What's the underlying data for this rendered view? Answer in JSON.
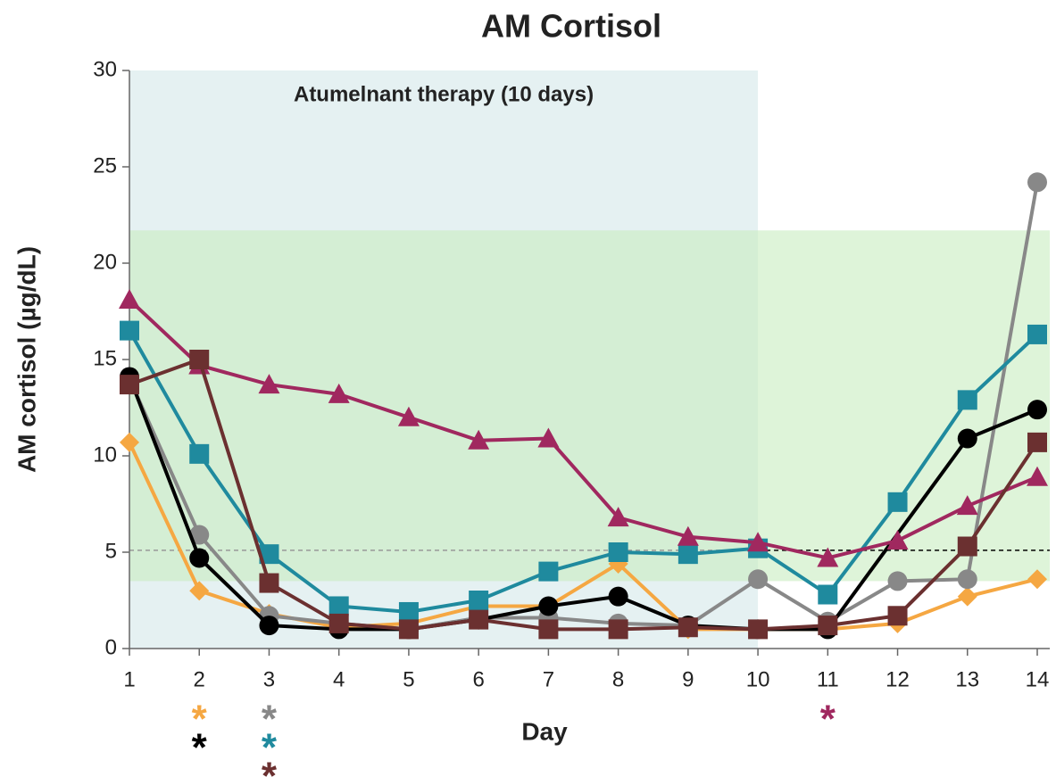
{
  "chart_data": {
    "type": "line",
    "title": "AM Cortisol",
    "xlabel": "Day",
    "ylabel": "AM cortisol (µg/dL)",
    "x": [
      1,
      2,
      3,
      4,
      5,
      6,
      7,
      8,
      9,
      10,
      11,
      12,
      13,
      14
    ],
    "xlim": [
      1,
      14
    ],
    "xticks": [
      1,
      2,
      3,
      4,
      5,
      6,
      7,
      8,
      9,
      10,
      11,
      12,
      13,
      14
    ],
    "ylim": [
      0,
      30
    ],
    "yticks": [
      0,
      5,
      10,
      15,
      20,
      25,
      30
    ],
    "grid": false,
    "shaded_regions": [
      {
        "xlim": [
          1,
          10
        ],
        "ylim": [
          0,
          30
        ],
        "color": "#d4e7ea",
        "label": "Atumelnant therapy (10 days)"
      },
      {
        "xlim": [
          1,
          14
        ],
        "ylim": [
          3.5,
          21.7
        ],
        "color": "#c8edc0"
      }
    ],
    "reference_lines": [
      {
        "y": 5.1,
        "xlim": [
          1,
          10
        ],
        "color": "#999999"
      },
      {
        "y": 5.1,
        "xlim": [
          10,
          14
        ],
        "color": "#000000"
      }
    ],
    "series": [
      {
        "color": "#f5a742",
        "marker": "diamond",
        "values": [
          10.7,
          3.0,
          1.8,
          1.1,
          1.3,
          2.2,
          2.2,
          4.4,
          1.0,
          1.0,
          1.0,
          1.3,
          2.7,
          3.6
        ]
      },
      {
        "color": "#888888",
        "marker": "circle",
        "values": [
          14.0,
          5.9,
          1.7,
          1.3,
          1.0,
          1.6,
          1.6,
          1.3,
          1.2,
          3.6,
          1.4,
          3.5,
          3.6,
          24.2
        ]
      },
      {
        "color": "#000000",
        "marker": "circle",
        "x": [
          1,
          2,
          3,
          4,
          5,
          6,
          7,
          8,
          9,
          10,
          11,
          13,
          14
        ],
        "values": [
          14.1,
          4.7,
          1.2,
          1.0,
          1.0,
          1.5,
          2.2,
          2.7,
          1.2,
          1.0,
          1.0,
          10.9,
          12.4
        ]
      },
      {
        "color": "#1f8a9e",
        "marker": "square",
        "values": [
          16.5,
          10.1,
          4.9,
          2.2,
          1.9,
          2.5,
          4.0,
          5.0,
          4.9,
          5.2,
          2.8,
          7.6,
          12.9,
          16.3
        ]
      },
      {
        "color": "#a0285f",
        "marker": "triangle",
        "values": [
          18.1,
          14.7,
          13.7,
          13.2,
          12.0,
          10.8,
          10.9,
          6.8,
          5.8,
          5.5,
          4.7,
          5.6,
          7.4,
          8.9
        ]
      },
      {
        "color": "#6b3030",
        "marker": "square",
        "values": [
          13.7,
          15.0,
          3.4,
          1.3,
          1.0,
          1.5,
          1.0,
          1.0,
          1.1,
          1.0,
          1.2,
          1.7,
          5.3,
          10.7
        ]
      }
    ],
    "annotations": [
      {
        "text": "*",
        "x": 2,
        "color": "#f5a742"
      },
      {
        "text": "*",
        "x": 2,
        "color": "#000000"
      },
      {
        "text": "*",
        "x": 3,
        "color": "#888888"
      },
      {
        "text": "*",
        "x": 3,
        "color": "#1f8a9e"
      },
      {
        "text": "*",
        "x": 3,
        "color": "#6b3030"
      },
      {
        "text": "*",
        "x": 11,
        "color": "#a0285f"
      }
    ]
  }
}
